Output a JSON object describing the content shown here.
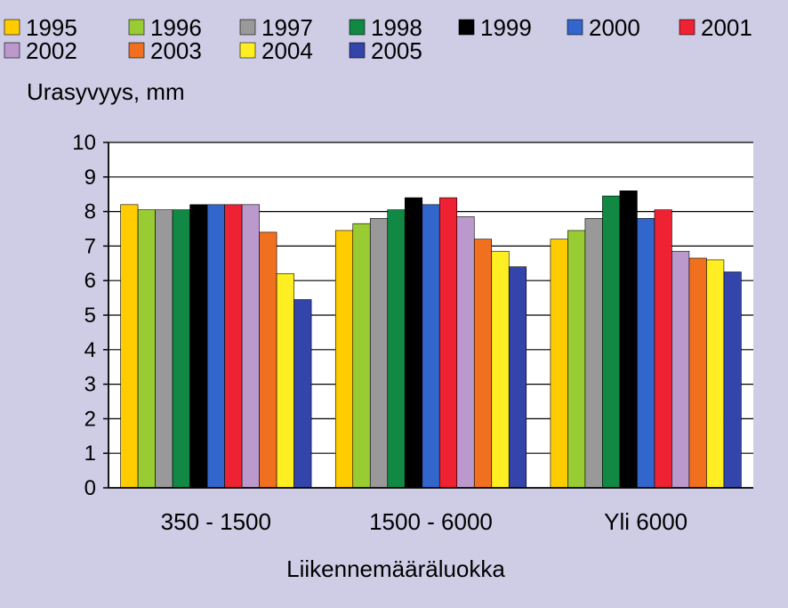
{
  "chart_data": {
    "type": "bar",
    "ylabel": "Urasyvyys, mm",
    "xlabel": "Liikennemääräluokka",
    "categories": [
      "350 - 1500",
      "1500 - 6000",
      "Yli 6000"
    ],
    "ylim": [
      0,
      10
    ],
    "yticks": [
      "0",
      "1",
      "2",
      "3",
      "4",
      "5",
      "6",
      "7",
      "8",
      "9",
      "10"
    ],
    "grid": true,
    "legend_position": "top",
    "series": [
      {
        "name": "1995",
        "color": "#ffcc00",
        "values": [
          8.2,
          7.45,
          7.2
        ]
      },
      {
        "name": "1996",
        "color": "#99cc33",
        "values": [
          8.05,
          7.65,
          7.45
        ]
      },
      {
        "name": "1997",
        "color": "#999999",
        "values": [
          8.05,
          7.8,
          7.8
        ]
      },
      {
        "name": "1998",
        "color": "#118844",
        "values": [
          8.05,
          8.05,
          8.45
        ]
      },
      {
        "name": "1999",
        "color": "#000000",
        "values": [
          8.2,
          8.4,
          8.6
        ]
      },
      {
        "name": "2000",
        "color": "#3366cc",
        "values": [
          8.2,
          8.2,
          7.8
        ]
      },
      {
        "name": "2001",
        "color": "#ee2233",
        "values": [
          8.2,
          8.4,
          8.05
        ]
      },
      {
        "name": "2002",
        "color": "#bb99cc",
        "values": [
          8.2,
          7.85,
          6.85
        ]
      },
      {
        "name": "2003",
        "color": "#f07020",
        "values": [
          7.4,
          7.2,
          6.65
        ]
      },
      {
        "name": "2004",
        "color": "#ffee22",
        "values": [
          6.2,
          6.85,
          6.6
        ]
      },
      {
        "name": "2005",
        "color": "#3344aa",
        "values": [
          5.45,
          6.4,
          6.25
        ]
      }
    ]
  }
}
